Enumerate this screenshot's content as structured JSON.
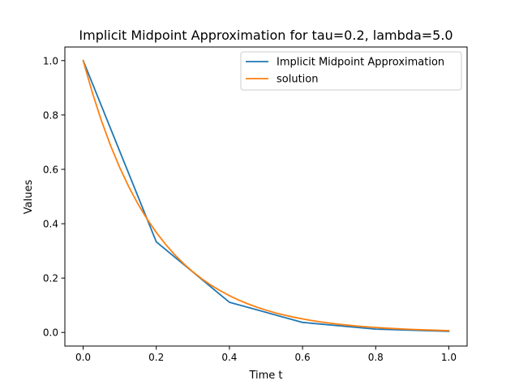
{
  "chart_data": {
    "type": "line",
    "title": "Implicit Midpoint Approximation for tau=0.2, lambda=5.0",
    "xlabel": "Time t",
    "ylabel": "Values",
    "xlim": [
      -0.05,
      1.05
    ],
    "ylim": [
      -0.05,
      1.05
    ],
    "xticks": [
      0.0,
      0.2,
      0.4,
      0.6,
      0.8,
      1.0
    ],
    "xtick_labels": [
      "0.0",
      "0.2",
      "0.4",
      "0.6",
      "0.8",
      "1.0"
    ],
    "yticks": [
      0.0,
      0.2,
      0.4,
      0.6,
      0.8,
      1.0
    ],
    "ytick_labels": [
      "0.0",
      "0.2",
      "0.4",
      "0.6",
      "0.8",
      "1.0"
    ],
    "grid": false,
    "legend": "top-right",
    "series": [
      {
        "name": "Implicit Midpoint Approximation",
        "color": "#1f77b4",
        "x": [
          0.0,
          0.2,
          0.4,
          0.6,
          0.8,
          1.0
        ],
        "y": [
          1.0,
          0.3333,
          0.1111,
          0.037,
          0.0123,
          0.0041
        ]
      },
      {
        "name": "solution",
        "color": "#ff7f0e",
        "x": [
          0.0,
          0.025,
          0.05,
          0.075,
          0.1,
          0.125,
          0.15,
          0.175,
          0.2,
          0.225,
          0.25,
          0.275,
          0.3,
          0.325,
          0.35,
          0.375,
          0.4,
          0.425,
          0.45,
          0.475,
          0.5,
          0.525,
          0.55,
          0.575,
          0.6,
          0.625,
          0.65,
          0.675,
          0.7,
          0.725,
          0.75,
          0.775,
          0.8,
          0.825,
          0.85,
          0.875,
          0.9,
          0.925,
          0.95,
          0.975,
          1.0
        ],
        "y": [
          1.0,
          0.8825,
          0.7788,
          0.6873,
          0.6065,
          0.5353,
          0.4724,
          0.4169,
          0.3679,
          0.3247,
          0.2865,
          0.2528,
          0.2231,
          0.1969,
          0.1738,
          0.1534,
          0.1353,
          0.1194,
          0.1054,
          0.093,
          0.0821,
          0.0724,
          0.0639,
          0.0564,
          0.0498,
          0.0439,
          0.0388,
          0.0342,
          0.0302,
          0.0266,
          0.0235,
          0.0208,
          0.0183,
          0.0162,
          0.0143,
          0.0126,
          0.0111,
          0.0098,
          0.0087,
          0.0076,
          0.0067
        ]
      }
    ]
  }
}
